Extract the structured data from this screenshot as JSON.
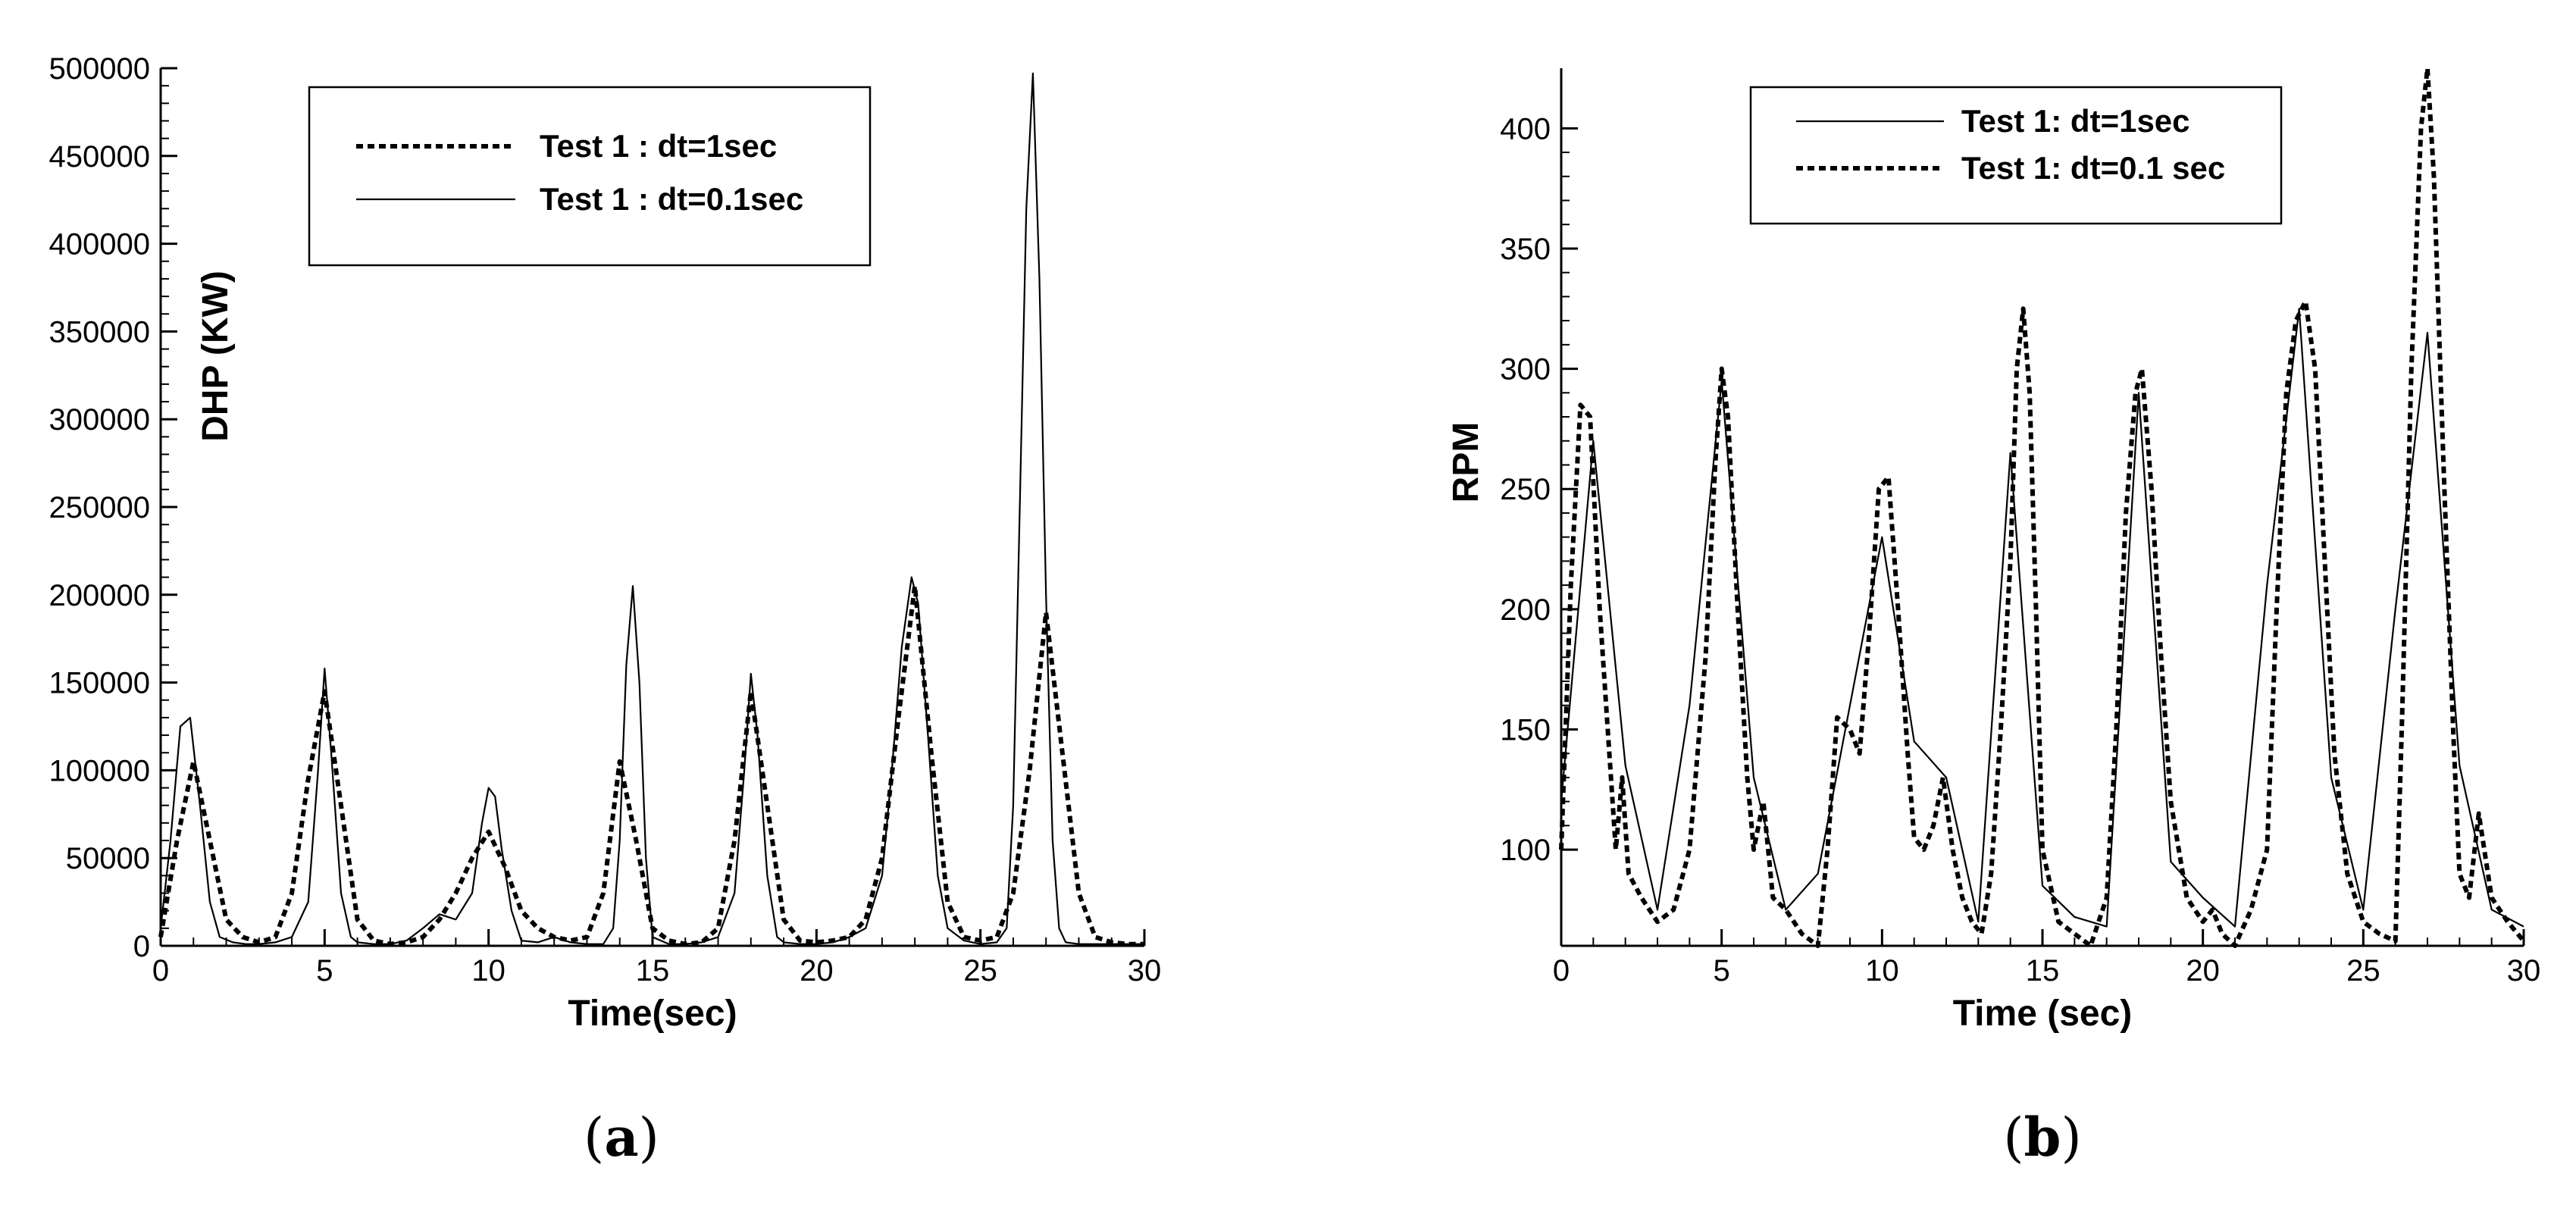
{
  "chart_data": [
    {
      "panel_label": "(a)",
      "type": "line",
      "title": "",
      "xlabel": "Time(sec)",
      "ylabel": "DHP (KW)",
      "xlim": [
        0,
        30
      ],
      "ylim": [
        0,
        500000
      ],
      "x_ticks": [
        0,
        5,
        10,
        15,
        20,
        25,
        30
      ],
      "y_ticks": [
        0,
        50000,
        100000,
        150000,
        200000,
        250000,
        300000,
        350000,
        400000,
        450000,
        500000
      ],
      "grid": false,
      "legend_position": "top-center",
      "series": [
        {
          "name": "Test 1 : dt=1sec",
          "line_style": "dotted",
          "color": "#000000",
          "x": [
            0,
            0.5,
            1,
            1.5,
            2,
            2.5,
            3,
            3.5,
            4,
            4.5,
            5,
            5.5,
            6,
            6.5,
            7,
            7.5,
            8,
            8.5,
            9,
            9.5,
            10,
            10.5,
            11,
            11.5,
            12,
            12.5,
            13,
            13.5,
            14,
            14.5,
            15,
            15.5,
            16,
            16.5,
            17,
            17.5,
            18,
            18.5,
            19,
            19.5,
            20,
            20.5,
            21,
            21.5,
            22,
            22.5,
            23,
            23.5,
            24,
            24.5,
            25,
            25.5,
            26,
            26.5,
            27,
            27.5,
            28,
            28.5,
            29,
            29.5,
            30
          ],
          "y": [
            5000,
            60000,
            105000,
            60000,
            15000,
            5000,
            2000,
            5000,
            30000,
            95000,
            145000,
            80000,
            15000,
            3000,
            1000,
            2000,
            5000,
            15000,
            30000,
            50000,
            65000,
            45000,
            20000,
            10000,
            5000,
            3000,
            5000,
            30000,
            105000,
            60000,
            10000,
            3000,
            1000,
            2000,
            10000,
            60000,
            145000,
            80000,
            15000,
            3000,
            2000,
            3000,
            5000,
            15000,
            50000,
            130000,
            205000,
            110000,
            25000,
            5000,
            3000,
            5000,
            30000,
            100000,
            190000,
            110000,
            30000,
            5000,
            2000,
            1000,
            1000
          ]
        },
        {
          "name": "Test 1 : dt=0.1sec",
          "line_style": "solid",
          "color": "#000000",
          "x": [
            0,
            0.3,
            0.6,
            0.9,
            1.2,
            1.5,
            1.8,
            2.2,
            2.6,
            3,
            3.5,
            4,
            4.5,
            4.8,
            5,
            5.2,
            5.5,
            5.8,
            6,
            6.5,
            7,
            7.5,
            8,
            8.5,
            9,
            9.5,
            9.8,
            10,
            10.2,
            10.4,
            10.7,
            11,
            11.5,
            12,
            12.5,
            13,
            13.5,
            13.8,
            14,
            14.2,
            14.4,
            14.6,
            14.8,
            15,
            15.5,
            16,
            16.5,
            17,
            17.5,
            17.8,
            18,
            18.2,
            18.5,
            18.8,
            19,
            19.5,
            20,
            20.5,
            21,
            21.5,
            22,
            22.3,
            22.6,
            22.9,
            23.1,
            23.4,
            23.7,
            24,
            24.5,
            25,
            25.5,
            25.8,
            26,
            26.2,
            26.4,
            26.6,
            26.8,
            27,
            27.2,
            27.4,
            27.6,
            28,
            28.5,
            29,
            29.5,
            30
          ],
          "y": [
            10000,
            60000,
            125000,
            130000,
            80000,
            25000,
            5000,
            2000,
            1000,
            1000,
            2000,
            5000,
            25000,
            100000,
            158000,
            110000,
            30000,
            5000,
            2000,
            1000,
            1000,
            3000,
            10000,
            18000,
            15000,
            30000,
            70000,
            90000,
            85000,
            55000,
            20000,
            3000,
            2000,
            5000,
            2000,
            1000,
            1000,
            10000,
            60000,
            160000,
            205000,
            150000,
            50000,
            5000,
            1000,
            1000,
            2000,
            5000,
            30000,
            100000,
            155000,
            120000,
            40000,
            5000,
            2000,
            1000,
            1000,
            2000,
            5000,
            10000,
            40000,
            100000,
            170000,
            210000,
            195000,
            120000,
            40000,
            10000,
            3000,
            1000,
            2000,
            10000,
            80000,
            250000,
            420000,
            497000,
            380000,
            200000,
            60000,
            10000,
            2000,
            1000,
            1000,
            1000,
            1000,
            1000
          ]
        }
      ]
    },
    {
      "panel_label": "(b)",
      "type": "line",
      "title": "",
      "xlabel": "Time (sec)",
      "ylabel": "RPM",
      "xlim": [
        0,
        30
      ],
      "ylim": [
        60,
        425
      ],
      "x_ticks": [
        0,
        5,
        10,
        15,
        20,
        25,
        30
      ],
      "y_ticks": [
        100,
        150,
        200,
        250,
        300,
        350,
        400
      ],
      "grid": false,
      "legend_position": "top-center",
      "series": [
        {
          "name": "Test 1: dt=1sec",
          "line_style": "solid",
          "color": "#000000",
          "x": [
            0,
            1,
            2,
            3,
            4,
            5,
            6,
            7,
            8,
            9,
            10,
            11,
            12,
            13,
            14,
            15,
            16,
            17,
            18,
            19,
            20,
            21,
            22,
            23,
            24,
            25,
            26,
            27,
            28,
            29,
            30
          ],
          "y": [
            120,
            270,
            135,
            75,
            160,
            295,
            130,
            75,
            90,
            160,
            230,
            145,
            130,
            70,
            265,
            85,
            72,
            68,
            290,
            95,
            80,
            68,
            210,
            325,
            130,
            75,
            200,
            315,
            135,
            75,
            68
          ]
        },
        {
          "name": "Test 1: dt=0.1 sec",
          "line_style": "dotted",
          "color": "#000000",
          "x": [
            0,
            0.3,
            0.6,
            0.9,
            1.2,
            1.5,
            1.7,
            1.9,
            2.1,
            2.5,
            3,
            3.5,
            4,
            4.5,
            4.8,
            5,
            5.2,
            5.5,
            5.8,
            6,
            6.3,
            6.6,
            7,
            7.5,
            8,
            8.3,
            8.6,
            9,
            9.3,
            9.6,
            9.9,
            10.2,
            10.5,
            10.8,
            11,
            11.3,
            11.6,
            11.9,
            12.2,
            12.5,
            12.8,
            13.1,
            13.4,
            13.7,
            14,
            14.2,
            14.4,
            14.6,
            14.8,
            15,
            15.5,
            16,
            16.5,
            17,
            17.3,
            17.6,
            17.9,
            18.1,
            18.4,
            18.7,
            19,
            19.5,
            20,
            20.3,
            20.6,
            21,
            21.5,
            22,
            22.3,
            22.6,
            22.9,
            23.2,
            23.5,
            23.8,
            24.1,
            24.5,
            25,
            25.5,
            26,
            26.2,
            26.5,
            26.8,
            27,
            27.2,
            27.5,
            27.8,
            28,
            28.3,
            28.6,
            29,
            29.5,
            30
          ],
          "y": [
            100,
            210,
            285,
            280,
            200,
            140,
            100,
            130,
            90,
            80,
            70,
            75,
            100,
            180,
            260,
            300,
            280,
            200,
            130,
            100,
            120,
            80,
            75,
            65,
            60,
            100,
            155,
            150,
            140,
            190,
            250,
            255,
            200,
            140,
            105,
            100,
            110,
            130,
            100,
            80,
            70,
            65,
            90,
            150,
            220,
            300,
            325,
            290,
            200,
            100,
            70,
            65,
            60,
            80,
            150,
            240,
            290,
            300,
            250,
            180,
            120,
            80,
            70,
            75,
            65,
            60,
            75,
            100,
            200,
            290,
            320,
            328,
            300,
            220,
            140,
            90,
            70,
            65,
            62,
            150,
            300,
            400,
            425,
            380,
            260,
            150,
            90,
            80,
            115,
            80,
            70,
            62
          ]
        }
      ]
    }
  ]
}
